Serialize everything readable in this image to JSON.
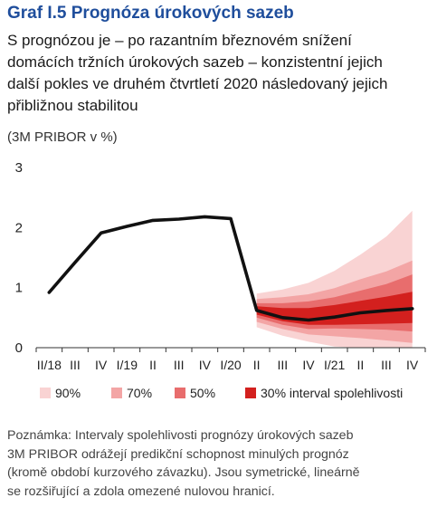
{
  "title": "Graf I.5 Prognóza úrokových sazeb",
  "subtitle_lines": [
    "S prognózou je – po razantním březnovém snížení",
    "domácích tržních úrokových sazeb – konzistentní jejich",
    "další pokles ve druhém čtvrtletí 2020 následovaný jejich",
    "přibližnou stabilitou"
  ],
  "units": "(3M PRIBOR v %)",
  "note_lines": [
    "Poznámka: Intervaly spolehlivosti prognózy úrokových sazeb",
    "3M PRIBOR odrážejí predikční schopnost minulých prognóz",
    "(kromě období kurzového závazku). Jsou symetrické, lineárně",
    "se rozšiřující a zdola omezené nulovou hranicí."
  ],
  "colors": {
    "line": "#111111",
    "band90": "#f9d3d3",
    "band70": "#f3a5a5",
    "band50": "#e86d6d",
    "band30": "#d3201e"
  },
  "chart_data": {
    "type": "area",
    "categories": [
      "II/18",
      "III",
      "IV",
      "I/19",
      "II",
      "III",
      "IV",
      "I/20",
      "II",
      "III",
      "IV",
      "I/21",
      "II",
      "III",
      "IV"
    ],
    "ylim": [
      0,
      3
    ],
    "yticks": [
      0,
      1,
      2,
      3
    ],
    "series": [
      {
        "values": [
          0.92,
          1.42,
          1.91,
          2.02,
          2.12,
          2.14,
          2.18,
          2.15,
          0.62,
          0.5,
          0.46,
          0.51,
          0.58,
          0.62,
          0.65
        ]
      }
    ],
    "forecast_start_index": 8,
    "bands": [
      {
        "name": "90%",
        "lower": [
          0.34,
          0.2,
          0.1,
          0.02,
          0.0,
          0.0,
          0.0
        ],
        "upper": [
          0.9,
          0.97,
          1.08,
          1.28,
          1.55,
          1.85,
          2.28
        ]
      },
      {
        "name": "70%",
        "lower": [
          0.43,
          0.31,
          0.22,
          0.19,
          0.16,
          0.12,
          0.08
        ],
        "upper": [
          0.81,
          0.84,
          0.89,
          0.99,
          1.14,
          1.27,
          1.45
        ]
      },
      {
        "name": "50%",
        "lower": [
          0.5,
          0.38,
          0.31,
          0.32,
          0.31,
          0.3,
          0.27
        ],
        "upper": [
          0.74,
          0.74,
          0.77,
          0.84,
          0.95,
          1.06,
          1.22
        ]
      },
      {
        "name": "30% interval spolehlivosti",
        "lower": [
          0.55,
          0.44,
          0.38,
          0.38,
          0.39,
          0.4,
          0.41
        ],
        "upper": [
          0.69,
          0.66,
          0.66,
          0.71,
          0.78,
          0.85,
          0.93
        ]
      }
    ],
    "legend": [
      "90%",
      "70%",
      "50%",
      "30% interval spolehlivosti"
    ],
    "grid": false,
    "legend_position": "bottom"
  }
}
